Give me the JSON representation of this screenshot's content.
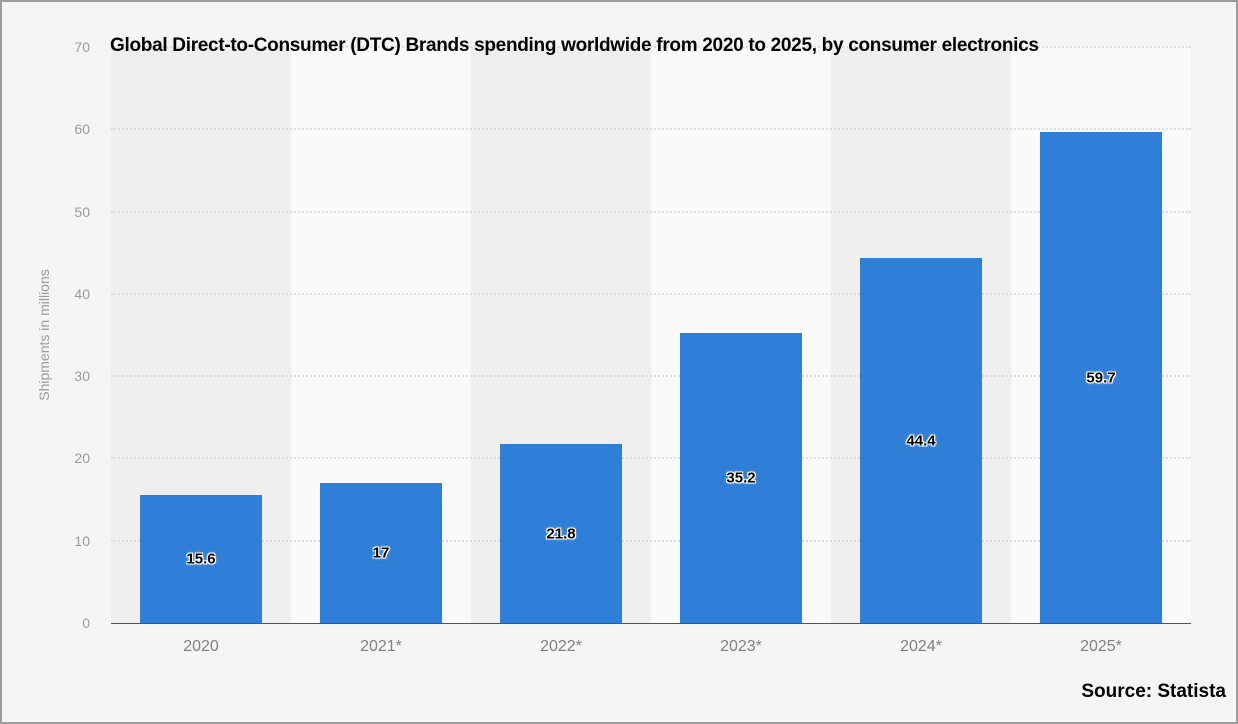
{
  "chart_data": {
    "type": "bar",
    "title": "Global Direct-to-Consumer (DTC) Brands spending worldwide from 2020 to 2025, by consumer electronics",
    "xlabel": "",
    "ylabel": "Shipments in millions",
    "categories": [
      "2020",
      "2021*",
      "2022*",
      "2023*",
      "2024*",
      "2025*"
    ],
    "values": [
      15.6,
      17,
      21.8,
      35.2,
      44.4,
      59.7
    ],
    "value_labels": [
      "15.6",
      "17",
      "21.8",
      "35.2",
      "44.4",
      "59.7"
    ],
    "ylim": [
      0,
      70
    ],
    "yticks": [
      0,
      10,
      20,
      30,
      40,
      50,
      60,
      70
    ],
    "grid": "horizontal dotted",
    "legend_position": "none",
    "colors": {
      "bar": "#2f7ed8",
      "band_shaded": "#efefef",
      "band_plain": "#fafafa",
      "background": "#f5f5f5",
      "gridline": "#dcdcdc",
      "axis_line": "#545454",
      "y_tick_label": "#9a9a9a",
      "category_label": "#808080",
      "title_text": "#000000"
    }
  },
  "footer": {
    "source_label": "Source: Statista"
  }
}
